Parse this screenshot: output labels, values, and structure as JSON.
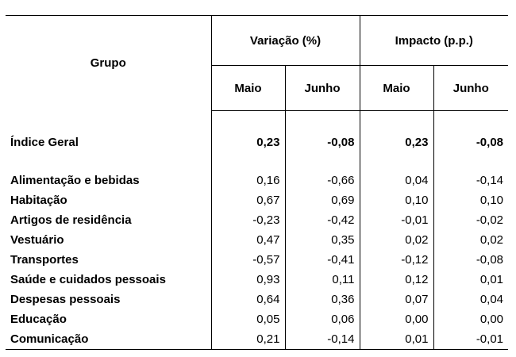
{
  "header": {
    "group_label": "Grupo",
    "variation_label": "Variação (%)",
    "impact_label": "Impacto (p.p.)",
    "month_1": "Maio",
    "month_2": "Junho"
  },
  "index_row": {
    "label": "Índice Geral",
    "var_maio": "0,23",
    "var_junho": "-0,08",
    "imp_maio": "0,23",
    "imp_junho": "-0,08"
  },
  "rows": [
    {
      "label": "Alimentação e bebidas",
      "var_maio": "0,16",
      "var_junho": "-0,66",
      "imp_maio": "0,04",
      "imp_junho": "-0,14"
    },
    {
      "label": "Habitação",
      "var_maio": "0,67",
      "var_junho": "0,69",
      "imp_maio": "0,10",
      "imp_junho": "0,10"
    },
    {
      "label": "Artigos de residência",
      "var_maio": "-0,23",
      "var_junho": "-0,42",
      "imp_maio": "-0,01",
      "imp_junho": "-0,02"
    },
    {
      "label": "Vestuário",
      "var_maio": "0,47",
      "var_junho": "0,35",
      "imp_maio": "0,02",
      "imp_junho": "0,02"
    },
    {
      "label": "Transportes",
      "var_maio": "-0,57",
      "var_junho": "-0,41",
      "imp_maio": "-0,12",
      "imp_junho": "-0,08"
    },
    {
      "label": "Saúde e cuidados pessoais",
      "var_maio": "0,93",
      "var_junho": "0,11",
      "imp_maio": "0,12",
      "imp_junho": "0,01"
    },
    {
      "label": "Despesas pessoais",
      "var_maio": "0,64",
      "var_junho": "0,36",
      "imp_maio": "0,07",
      "imp_junho": "0,04"
    },
    {
      "label": "Educação",
      "var_maio": "0,05",
      "var_junho": "0,06",
      "imp_maio": "0,00",
      "imp_junho": "0,00"
    },
    {
      "label": "Comunicação",
      "var_maio": "0,21",
      "var_junho": "-0,14",
      "imp_maio": "0,01",
      "imp_junho": "-0,01"
    }
  ]
}
